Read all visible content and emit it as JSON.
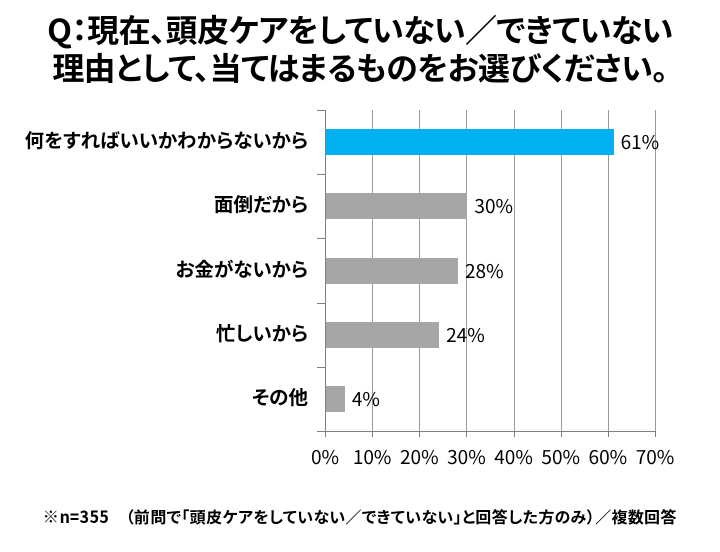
{
  "title": {
    "line1": "Q：現在、頭皮ケアをしていない／できていない",
    "line2": "理由として、当てはまるものをお選びください。"
  },
  "chart_data": {
    "type": "bar",
    "orientation": "horizontal",
    "categories": [
      "何をすればいいかわからないから",
      "面倒だから",
      "お金がないから",
      "忙しいから",
      "その他"
    ],
    "values": [
      61,
      30,
      28,
      24,
      4
    ],
    "value_labels": [
      "61%",
      "30%",
      "28%",
      "24%",
      "4%"
    ],
    "xlabel": "",
    "ylabel": "",
    "xlim": [
      0,
      70
    ],
    "x_tick_step": 10,
    "x_tick_labels": [
      "0%",
      "10%",
      "20%",
      "30%",
      "40%",
      "50%",
      "60%",
      "70%"
    ],
    "grid": true,
    "legend": false,
    "bar_colors": [
      "#00B0F0",
      "#A6A6A6",
      "#A6A6A6",
      "#A6A6A6",
      "#A6A6A6"
    ],
    "highlight_color": "#00B0F0",
    "default_bar_color": "#A6A6A6"
  },
  "footer": {
    "note": "※n=355　（前問で「頭皮ケアをしていない／できていない」と回答した方のみ）／複数回答"
  },
  "colors": {
    "background": "#FFFFFF",
    "text": "#000000",
    "gridline": "#9B9B9B",
    "axis": "#808080"
  }
}
